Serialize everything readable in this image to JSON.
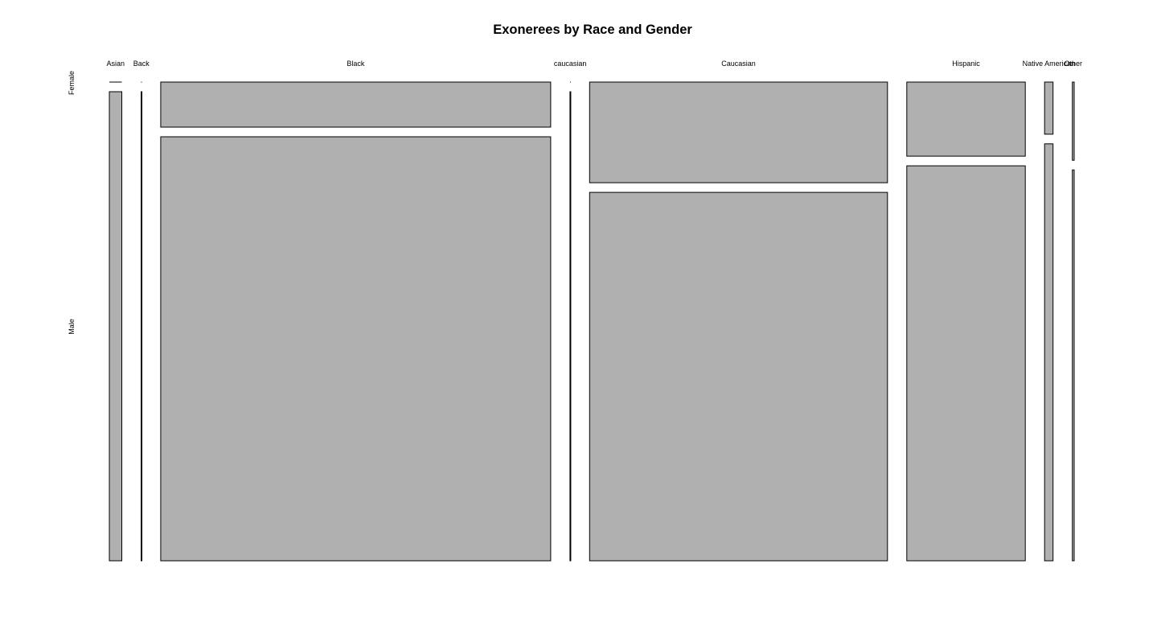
{
  "chart_data": {
    "type": "mosaic",
    "title": "Exonerees by Race and Gender",
    "xlabel": "",
    "ylabel": "",
    "categories": [
      "Asian",
      "Back",
      "Black",
      "caucasian",
      "Caucasian",
      "Hispanic",
      "Native American",
      "Other"
    ],
    "row_categories": [
      "Female",
      "Male"
    ],
    "series": [
      {
        "name": "Female",
        "values": [
          0,
          0,
          120,
          0,
          205,
          60,
          3,
          1
        ]
      },
      {
        "name": "Male",
        "values": [
          40,
          1,
          1130,
          1,
          750,
          320,
          24,
          5
        ]
      }
    ],
    "fill_color": "#b0b0b0",
    "stroke_color": "#000000"
  }
}
